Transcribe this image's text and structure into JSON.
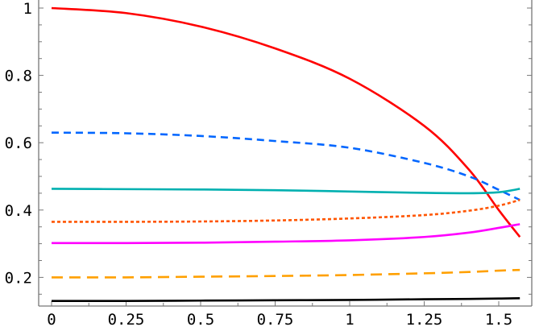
{
  "chart_data": {
    "type": "line",
    "title": "",
    "xlabel": "",
    "ylabel": "",
    "xlim": [
      0,
      1.5708
    ],
    "ylim": [
      0.115,
      1.01
    ],
    "grid": false,
    "frame": true,
    "x_ticks": [
      "0",
      "0.25",
      "0.5",
      "0.75",
      "1",
      "1.25",
      "1.5"
    ],
    "x_tick_values": [
      0,
      0.25,
      0.5,
      0.75,
      1,
      1.25,
      1.5
    ],
    "y_ticks": [
      "0.2",
      "0.4",
      "0.6",
      "0.8",
      "1"
    ],
    "y_tick_values": [
      0.2,
      0.4,
      0.6,
      0.8,
      1
    ],
    "x": [
      0,
      0.25,
      0.5,
      0.75,
      1.0,
      1.25,
      1.4,
      1.5,
      1.5708
    ],
    "series": [
      {
        "color": "#ff0000",
        "style": "solid",
        "values": [
          1.0,
          0.985,
          0.945,
          0.88,
          0.79,
          0.65,
          0.52,
          0.4,
          0.32
        ]
      },
      {
        "color": "#0066ff",
        "style": "dashed",
        "values": [
          0.63,
          0.628,
          0.62,
          0.605,
          0.585,
          0.54,
          0.5,
          0.46,
          0.43
        ]
      },
      {
        "color": "#00b0b0",
        "style": "solid",
        "values": [
          0.463,
          0.462,
          0.461,
          0.459,
          0.455,
          0.451,
          0.45,
          0.453,
          0.463
        ]
      },
      {
        "color": "#ff5500",
        "style": "dotted",
        "values": [
          0.365,
          0.365,
          0.366,
          0.369,
          0.375,
          0.385,
          0.398,
          0.413,
          0.43
        ]
      },
      {
        "color": "#ff00ff",
        "style": "solid",
        "values": [
          0.302,
          0.302,
          0.303,
          0.306,
          0.31,
          0.32,
          0.333,
          0.347,
          0.358
        ]
      },
      {
        "color": "#ffa000",
        "style": "long-dashed",
        "values": [
          0.2,
          0.2,
          0.202,
          0.204,
          0.207,
          0.212,
          0.216,
          0.22,
          0.222
        ]
      },
      {
        "color": "#000000",
        "style": "solid",
        "values": [
          0.13,
          0.13,
          0.131,
          0.132,
          0.133,
          0.135,
          0.136,
          0.137,
          0.138
        ]
      }
    ]
  }
}
